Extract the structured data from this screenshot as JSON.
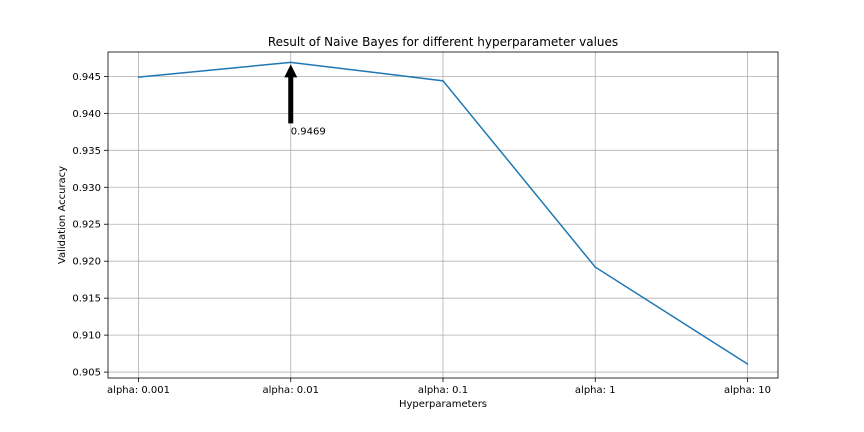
{
  "chart_data": {
    "type": "line",
    "title": "Result of Naive Bayes for different hyperparameter values",
    "xlabel": "Hyperparameters",
    "ylabel": "Validation Accuracy",
    "categories": [
      "alpha: 0.001",
      "alpha: 0.01",
      "alpha: 0.1",
      "alpha: 1",
      "alpha: 10"
    ],
    "series": [
      {
        "values": [
          0.9449,
          0.9469,
          0.9444,
          0.9192,
          0.9061
        ],
        "color": "#1f77b4"
      }
    ],
    "ylim": [
      0.9042,
      0.9483
    ],
    "yticks": [
      "0.905",
      "0.910",
      "0.915",
      "0.920",
      "0.925",
      "0.930",
      "0.935",
      "0.940",
      "0.945"
    ],
    "grid": true,
    "annotation": {
      "text": "0.9469",
      "category": "alpha: 0.01",
      "value": 0.9469,
      "arrow": "black"
    }
  }
}
